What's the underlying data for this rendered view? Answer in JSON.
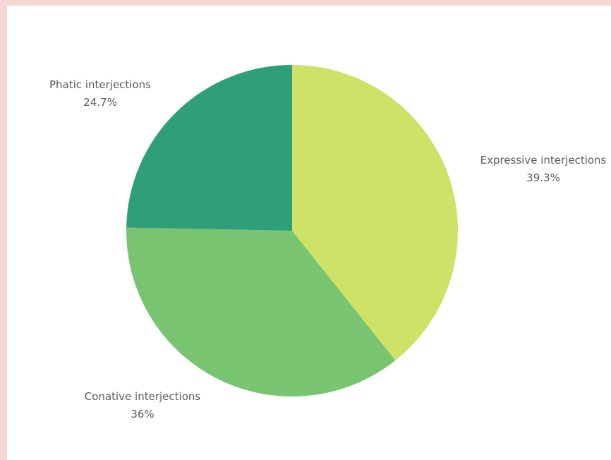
{
  "chart_data": {
    "type": "pie",
    "title": "",
    "slices": [
      {
        "label": "Expressive interjections",
        "value": 39.3,
        "value_label": "39.3%",
        "color": "#cde267"
      },
      {
        "label": "Conative interjections",
        "value": 36,
        "value_label": "36%",
        "color": "#79c471"
      },
      {
        "label": "Phatic interjections",
        "value": 24.7,
        "value_label": "24.7%",
        "color": "#2e9f78"
      }
    ],
    "start_angle": "12 o'clock",
    "direction": "clockwise",
    "legend": "none",
    "labels": "outside"
  },
  "colors": {
    "background": "#f6d9d3",
    "card": "#ffffff",
    "label_text": "#5b5b5b"
  }
}
